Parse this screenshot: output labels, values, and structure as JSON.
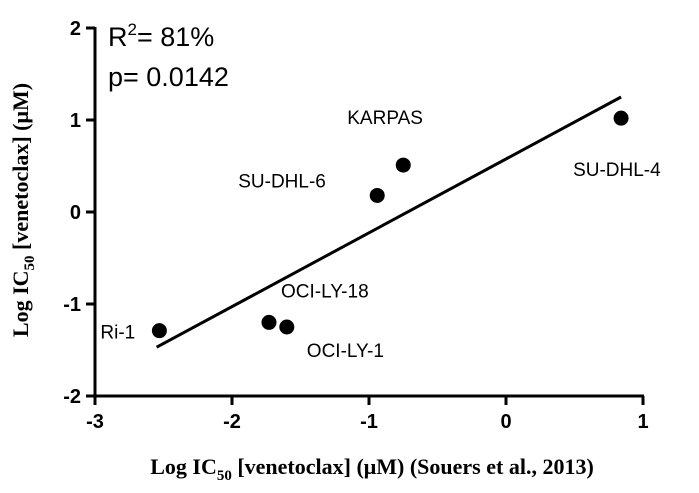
{
  "chart_data": {
    "type": "scatter",
    "title": "",
    "xlabel_parts": {
      "pre": "Log IC",
      "sub": "50",
      "post": " [venetoclax] (μM) (Souers et al., 2013)"
    },
    "ylabel_parts": {
      "pre": "Log IC",
      "sub": "50",
      "post": " [venetoclax] (μM)"
    },
    "xlim": [
      -3,
      1
    ],
    "ylim": [
      -2,
      2
    ],
    "xticks": [
      -3,
      -2,
      -1,
      0,
      1
    ],
    "yticks": [
      -2,
      -1,
      0,
      1,
      2
    ],
    "grid": false,
    "points": [
      {
        "label": "Ri-1",
        "x": -2.53,
        "y": -1.29
      },
      {
        "label": "OCI-LY-18",
        "x": -1.73,
        "y": -1.2
      },
      {
        "label": "OCI-LY-1",
        "x": -1.6,
        "y": -1.25
      },
      {
        "label": "SU-DHL-6",
        "x": -0.94,
        "y": 0.18
      },
      {
        "label": "KARPAS",
        "x": -0.75,
        "y": 0.51
      },
      {
        "label": "SU-DHL-4",
        "x": 0.84,
        "y": 1.02
      }
    ],
    "fit_line": {
      "x": [
        -2.55,
        0.84
      ],
      "y": [
        -1.47,
        1.25
      ]
    },
    "annotations": {
      "r2_pre": "R",
      "r2_sup": "2",
      "r2_post": "= 81%",
      "p_value": "p= 0.0142"
    },
    "colors": {
      "marker": "#000000",
      "line": "#000000",
      "axis": "#000000"
    }
  }
}
